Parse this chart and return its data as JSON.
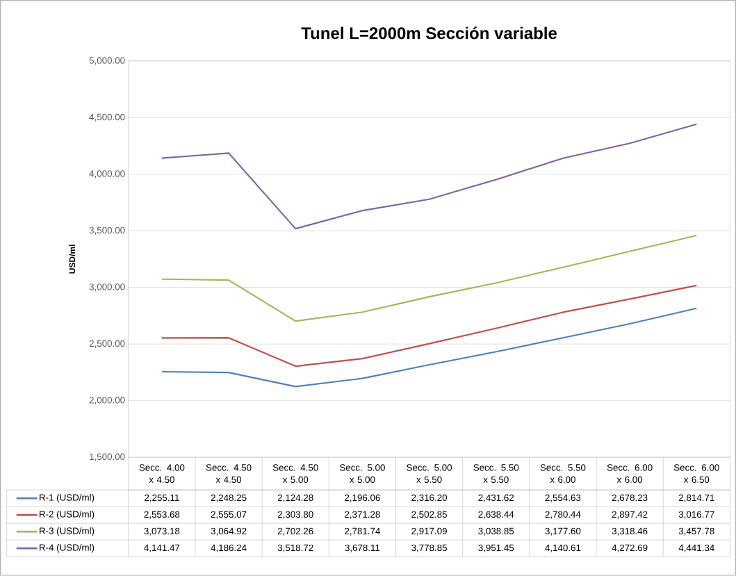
{
  "chart_data": {
    "type": "line",
    "title": "Tunel L=2000m Sección variable",
    "ylabel": "USD/ml",
    "categories": [
      "Secc. 4.00 x 4.50",
      "Secc. 4.50 x 4.50",
      "Secc. 4.50 x 5.00",
      "Secc. 5.00 x 5.00",
      "Secc. 5.00 x 5.50",
      "Secc. 5.50 x 5.50",
      "Secc. 5.50 x 6.00",
      "Secc. 6.00 x 6.00",
      "Secc. 6.00 x 6.50"
    ],
    "series": [
      {
        "name": "R-1 (USD/ml)",
        "color": "#4f81bd",
        "values": [
          2255.11,
          2248.25,
          2124.28,
          2196.06,
          2316.2,
          2431.62,
          2554.63,
          2678.23,
          2814.71
        ],
        "value_labels": [
          "2,255.11",
          "2,248.25",
          "2,124.28",
          "2,196.06",
          "2,316.20",
          "2,431.62",
          "2,554.63",
          "2,678.23",
          "2,814.71"
        ]
      },
      {
        "name": "R-2 (USD/ml)",
        "color": "#c0504d",
        "values": [
          2553.68,
          2555.07,
          2303.8,
          2371.28,
          2502.85,
          2638.44,
          2780.44,
          2897.42,
          3016.77
        ],
        "value_labels": [
          "2,553.68",
          "2,555.07",
          "2,303.80",
          "2,371.28",
          "2,502.85",
          "2,638.44",
          "2,780.44",
          "2,897.42",
          "3,016.77"
        ]
      },
      {
        "name": "R-3 (USD/ml)",
        "color": "#9bbb59",
        "values": [
          3073.18,
          3064.92,
          2702.26,
          2781.74,
          2917.09,
          3038.85,
          3177.6,
          3318.46,
          3457.78
        ],
        "value_labels": [
          "3,073.18",
          "3,064.92",
          "2,702.26",
          "2,781.74",
          "2,917.09",
          "3,038.85",
          "3,177.60",
          "3,318.46",
          "3,457.78"
        ]
      },
      {
        "name": "R-4 (USD/ml)",
        "color": "#8064a2",
        "values": [
          4141.47,
          4186.24,
          3518.72,
          3678.11,
          3778.85,
          3951.45,
          4140.61,
          4272.69,
          4441.34
        ],
        "value_labels": [
          "4,141.47",
          "4,186.24",
          "3,518.72",
          "3,678.11",
          "3,778.85",
          "3,951.45",
          "4,140.61",
          "4,272.69",
          "4,441.34"
        ]
      }
    ],
    "ylim": [
      1500,
      5000
    ],
    "yticks": [
      {
        "value": 1500,
        "label": "1,500.00"
      },
      {
        "value": 2000,
        "label": "2,000.00"
      },
      {
        "value": 2500,
        "label": "2,500.00"
      },
      {
        "value": 3000,
        "label": "3,000.00"
      },
      {
        "value": 3500,
        "label": "3,500.00"
      },
      {
        "value": 4000,
        "label": "4,000.00"
      },
      {
        "value": 4500,
        "label": "4,500.00"
      },
      {
        "value": 5000,
        "label": "5,000.00"
      }
    ],
    "grid": "y",
    "legend": "bottom",
    "marker": "none",
    "line_style": "solid"
  }
}
